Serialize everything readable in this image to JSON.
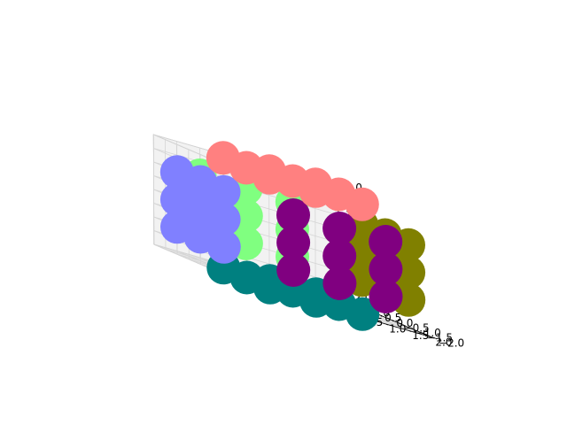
{
  "chart_data": {
    "type": "scatter",
    "projection": "3d",
    "grid": true,
    "xlim": [
      -2.0,
      2.0
    ],
    "ylim": [
      -2.0,
      2.0
    ],
    "zlim": [
      -2.0,
      2.0
    ],
    "xticks": [
      "−2.0",
      "−1.5",
      "−1.0",
      "−0.5",
      "0.0",
      "0.5",
      "1.0",
      "1.5",
      "2.0"
    ],
    "yticks": [
      "−2.0",
      "−1.5",
      "−1.0",
      "−0.5",
      "0.0",
      "0.5",
      "1.0",
      "1.5",
      "2.0"
    ],
    "zticks": [
      "−2.0",
      "−1.5",
      "−1.0",
      "−0.5",
      "0.0",
      "0.5",
      "1.0",
      "1.5",
      "2.0"
    ],
    "series": [
      {
        "color": "#ff8080",
        "points": [
          [
            -1,
            -1,
            2
          ],
          [
            0,
            -1,
            2
          ],
          [
            1,
            -1,
            2
          ],
          [
            -1,
            0,
            2
          ],
          [
            0,
            0,
            2
          ],
          [
            1,
            0,
            2
          ],
          [
            -1,
            1,
            2
          ],
          [
            0,
            1,
            2
          ],
          [
            1,
            1,
            2
          ]
        ]
      },
      {
        "color": "#008080",
        "points": [
          [
            -1,
            -1,
            -2
          ],
          [
            0,
            -1,
            -2
          ],
          [
            1,
            -1,
            -2
          ],
          [
            -1,
            0,
            -2
          ],
          [
            0,
            0,
            -2
          ],
          [
            1,
            0,
            -2
          ],
          [
            -1,
            1,
            -2
          ],
          [
            0,
            1,
            -2
          ],
          [
            1,
            1,
            -2
          ]
        ]
      },
      {
        "color": "#8080ff",
        "points": [
          [
            -2,
            -1,
            -1
          ],
          [
            -2,
            0,
            -1
          ],
          [
            -2,
            1,
            -1
          ],
          [
            -2,
            -1,
            0
          ],
          [
            -2,
            0,
            0
          ],
          [
            -2,
            1,
            0
          ],
          [
            -2,
            -1,
            1
          ],
          [
            -2,
            0,
            1
          ],
          [
            -2,
            1,
            1
          ]
        ]
      },
      {
        "color": "#808000",
        "points": [
          [
            2,
            -1,
            -1
          ],
          [
            2,
            0,
            -1
          ],
          [
            2,
            1,
            -1
          ],
          [
            2,
            -1,
            0
          ],
          [
            2,
            0,
            0
          ],
          [
            2,
            1,
            0
          ],
          [
            2,
            -1,
            1
          ],
          [
            2,
            0,
            1
          ],
          [
            2,
            1,
            1
          ]
        ]
      },
      {
        "color": "#80ff80",
        "points": [
          [
            -1,
            2,
            -1
          ],
          [
            0,
            2,
            -1
          ],
          [
            1,
            2,
            -1
          ],
          [
            -1,
            2,
            0
          ],
          [
            0,
            2,
            0
          ],
          [
            1,
            2,
            0
          ],
          [
            -1,
            2,
            1
          ],
          [
            0,
            2,
            1
          ],
          [
            1,
            2,
            1
          ]
        ]
      },
      {
        "color": "#800080",
        "points": [
          [
            -1,
            -2,
            -1
          ],
          [
            0,
            -2,
            -1
          ],
          [
            1,
            -2,
            -1
          ],
          [
            -1,
            -2,
            0
          ],
          [
            0,
            -2,
            0
          ],
          [
            1,
            -2,
            0
          ],
          [
            -1,
            -2,
            1
          ],
          [
            0,
            -2,
            1
          ],
          [
            1,
            -2,
            1
          ]
        ]
      }
    ]
  }
}
